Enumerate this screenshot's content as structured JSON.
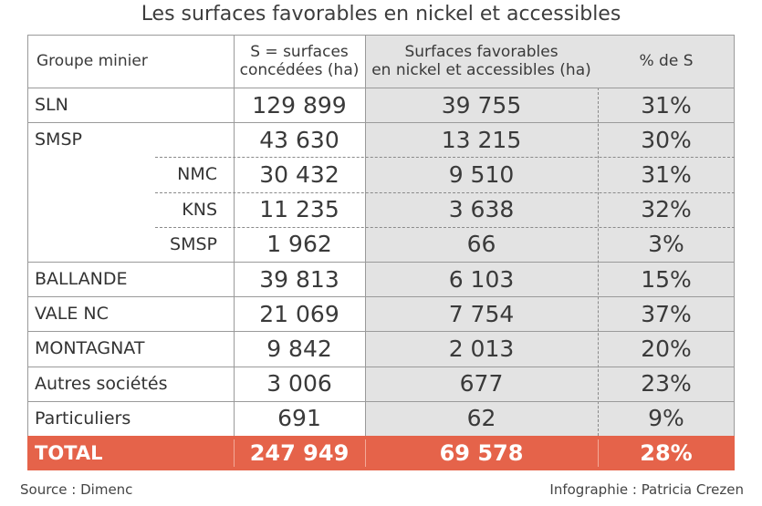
{
  "title": "Les surfaces favorables en nickel et accessibles",
  "headers": {
    "group": "Groupe minier",
    "surfaces_line1": "S = surfaces",
    "surfaces_line2": "concédées (ha)",
    "favorable_line1": "Surfaces favorables",
    "favorable_line2": "en nickel et accessibles (ha)",
    "percent": "% de S"
  },
  "rows": [
    {
      "name": "SLN",
      "s": "129 899",
      "fav": "39 755",
      "pct": "31%",
      "sub": false
    },
    {
      "name": "SMSP",
      "s": "43 630",
      "fav": "13 215",
      "pct": "30%",
      "sub": false
    },
    {
      "name": "NMC",
      "s": "30 432",
      "fav": "9 510",
      "pct": "31%",
      "sub": true
    },
    {
      "name": "KNS",
      "s": "11 235",
      "fav": "3 638",
      "pct": "32%",
      "sub": true
    },
    {
      "name": "SMSP",
      "s": "1 962",
      "fav": "66",
      "pct": "3%",
      "sub": true
    },
    {
      "name": "BALLANDE",
      "s": "39 813",
      "fav": "6 103",
      "pct": "15%",
      "sub": false
    },
    {
      "name": "VALE NC",
      "s": "21 069",
      "fav": "7 754",
      "pct": "37%",
      "sub": false
    },
    {
      "name": "MONTAGNAT",
      "s": "9 842",
      "fav": "2 013",
      "pct": "20%",
      "sub": false
    },
    {
      "name": "Autres sociétés",
      "s": "3 006",
      "fav": "677",
      "pct": "23%",
      "sub": false
    },
    {
      "name": "Particuliers",
      "s": "691",
      "fav": "62",
      "pct": "9%",
      "sub": false
    }
  ],
  "total": {
    "name": "TOTAL",
    "s": "247 949",
    "fav": "69 578",
    "pct": "28%"
  },
  "footer": {
    "source": "Source : Dimenc",
    "credit": "Infographie : Patricia Crezen"
  },
  "colors": {
    "total_bg": "#e5634a",
    "shade": "#e3e3e3",
    "border": "#9a9a9a"
  }
}
